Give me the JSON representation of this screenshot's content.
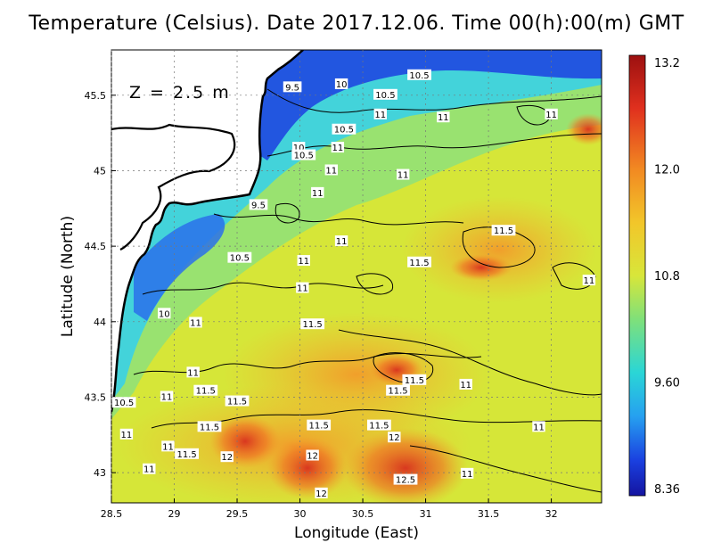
{
  "title": "Temperature (Celsius). Date 2017.12.06. Time 00(h):00(m) GMT",
  "depth_label": "Z = 2.5 m",
  "xlabel": "Longitude (East)",
  "ylabel": "Latitude (North)",
  "x_ticks": [
    "28.5",
    "29",
    "29.5",
    "30",
    "30.5",
    "31",
    "31.5",
    "32"
  ],
  "y_ticks": [
    "43",
    "43.5",
    "44",
    "44.5",
    "45",
    "45.5"
  ],
  "colorbar_ticks": [
    "13.2",
    "12.0",
    "10.8",
    "9.60",
    "8.36"
  ],
  "colors": {
    "cold": "#1a2bd6",
    "cyan": "#26c8e8",
    "green": "#7fe07a",
    "yellow": "#e8e23a",
    "orange": "#f29b2a",
    "warm": "#d8301e",
    "land": "#ffffff"
  },
  "chart_data": {
    "type": "heatmap",
    "title": "Temperature (Celsius). Date 2017.12.06. Time 00(h):00(m) GMT",
    "xlabel": "Longitude (East)",
    "ylabel": "Latitude (North)",
    "xlim": [
      28.5,
      32.4
    ],
    "ylim": [
      42.8,
      45.8
    ],
    "color_range": [
      8.36,
      13.2
    ],
    "contour_labels": [
      {
        "lon": 29.94,
        "lat": 45.55,
        "value": "9.5"
      },
      {
        "lon": 30.33,
        "lat": 45.57,
        "value": "10"
      },
      {
        "lon": 30.95,
        "lat": 45.63,
        "value": "10.5"
      },
      {
        "lon": 30.68,
        "lat": 45.5,
        "value": "10.5"
      },
      {
        "lon": 30.64,
        "lat": 45.37,
        "value": "11"
      },
      {
        "lon": 31.14,
        "lat": 45.35,
        "value": "11"
      },
      {
        "lon": 32.0,
        "lat": 45.37,
        "value": "11"
      },
      {
        "lon": 30.35,
        "lat": 45.27,
        "value": "10.5"
      },
      {
        "lon": 29.99,
        "lat": 45.15,
        "value": "10"
      },
      {
        "lon": 30.03,
        "lat": 45.1,
        "value": "10.5"
      },
      {
        "lon": 30.3,
        "lat": 45.15,
        "value": "11"
      },
      {
        "lon": 30.25,
        "lat": 45.0,
        "value": "11"
      },
      {
        "lon": 30.82,
        "lat": 44.97,
        "value": "11"
      },
      {
        "lon": 30.14,
        "lat": 44.85,
        "value": "11"
      },
      {
        "lon": 29.67,
        "lat": 44.77,
        "value": "9.5"
      },
      {
        "lon": 30.33,
        "lat": 44.53,
        "value": "11"
      },
      {
        "lon": 31.62,
        "lat": 44.6,
        "value": "11.5"
      },
      {
        "lon": 29.52,
        "lat": 44.42,
        "value": "10.5"
      },
      {
        "lon": 30.03,
        "lat": 44.4,
        "value": "11"
      },
      {
        "lon": 30.95,
        "lat": 44.39,
        "value": "11.5"
      },
      {
        "lon": 30.02,
        "lat": 44.22,
        "value": "11"
      },
      {
        "lon": 32.3,
        "lat": 44.27,
        "value": "11"
      },
      {
        "lon": 28.92,
        "lat": 44.05,
        "value": "10"
      },
      {
        "lon": 29.17,
        "lat": 43.99,
        "value": "11"
      },
      {
        "lon": 30.1,
        "lat": 43.98,
        "value": "11.5"
      },
      {
        "lon": 29.15,
        "lat": 43.66,
        "value": "11"
      },
      {
        "lon": 30.91,
        "lat": 43.61,
        "value": "11.5"
      },
      {
        "lon": 31.32,
        "lat": 43.58,
        "value": "11"
      },
      {
        "lon": 29.25,
        "lat": 43.54,
        "value": "11.5"
      },
      {
        "lon": 30.78,
        "lat": 43.54,
        "value": "11.5"
      },
      {
        "lon": 28.94,
        "lat": 43.5,
        "value": "11"
      },
      {
        "lon": 29.5,
        "lat": 43.47,
        "value": "11.5"
      },
      {
        "lon": 28.6,
        "lat": 43.46,
        "value": "10.5"
      },
      {
        "lon": 29.28,
        "lat": 43.3,
        "value": "11.5"
      },
      {
        "lon": 30.15,
        "lat": 43.31,
        "value": "11.5"
      },
      {
        "lon": 30.63,
        "lat": 43.31,
        "value": "11.5"
      },
      {
        "lon": 31.9,
        "lat": 43.3,
        "value": "11"
      },
      {
        "lon": 28.62,
        "lat": 43.25,
        "value": "11"
      },
      {
        "lon": 30.75,
        "lat": 43.23,
        "value": "12"
      },
      {
        "lon": 28.95,
        "lat": 43.17,
        "value": "11"
      },
      {
        "lon": 29.1,
        "lat": 43.12,
        "value": "11.5"
      },
      {
        "lon": 29.42,
        "lat": 43.1,
        "value": "12"
      },
      {
        "lon": 30.1,
        "lat": 43.11,
        "value": "12"
      },
      {
        "lon": 28.8,
        "lat": 43.02,
        "value": "11"
      },
      {
        "lon": 30.84,
        "lat": 42.95,
        "value": "12.5"
      },
      {
        "lon": 31.33,
        "lat": 42.99,
        "value": "11"
      },
      {
        "lon": 30.17,
        "lat": 42.86,
        "value": "12"
      }
    ]
  }
}
